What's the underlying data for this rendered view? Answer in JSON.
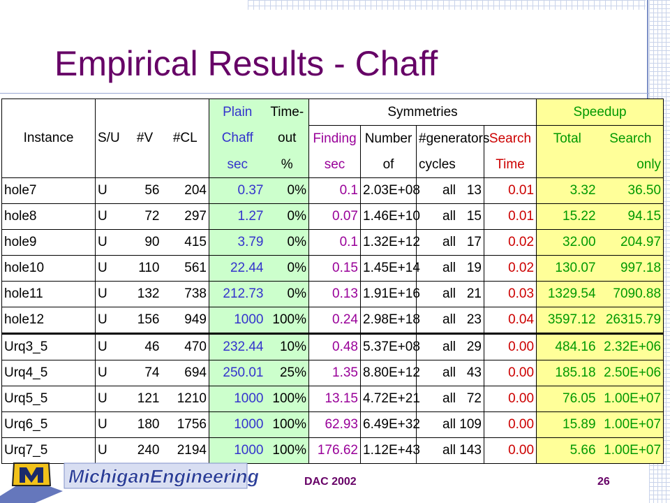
{
  "slide": {
    "title": "Empirical Results - Chaff"
  },
  "table": {
    "headers": {
      "instance": "Instance",
      "su": "S/U",
      "v": "#V",
      "cl": "#CL",
      "plain_chaff": [
        "Plain",
        "Chaff",
        "sec"
      ],
      "timeout": [
        "Time-",
        "out",
        "%"
      ],
      "symmetries": "Symmetries",
      "finding": [
        "Finding",
        "sec"
      ],
      "number": [
        "Number",
        "of"
      ],
      "generators": [
        "#generators",
        "cycles"
      ],
      "search": [
        "Search",
        "Time"
      ],
      "speedup": "Speedup",
      "total": "Total",
      "search_only": [
        "Search",
        "only"
      ]
    },
    "rows": [
      {
        "instance": "hole7",
        "su": "U",
        "v": "56",
        "cl": "204",
        "chaff": "0.37",
        "timeout": "0%",
        "finding": "0.1",
        "number": "2.03E+08",
        "all": "all",
        "cycles": "13",
        "search": "0.01",
        "total": "3.32",
        "search_only": "36.50"
      },
      {
        "instance": "hole8",
        "su": "U",
        "v": "72",
        "cl": "297",
        "chaff": "1.27",
        "timeout": "0%",
        "finding": "0.07",
        "number": "1.46E+10",
        "all": "all",
        "cycles": "15",
        "search": "0.01",
        "total": "15.22",
        "search_only": "94.15"
      },
      {
        "instance": "hole9",
        "su": "U",
        "v": "90",
        "cl": "415",
        "chaff": "3.79",
        "timeout": "0%",
        "finding": "0.1",
        "number": "1.32E+12",
        "all": "all",
        "cycles": "17",
        "search": "0.02",
        "total": "32.00",
        "search_only": "204.97"
      },
      {
        "instance": "hole10",
        "su": "U",
        "v": "110",
        "cl": "561",
        "chaff": "22.44",
        "timeout": "0%",
        "finding": "0.15",
        "number": "1.45E+14",
        "all": "all",
        "cycles": "19",
        "search": "0.02",
        "total": "130.07",
        "search_only": "997.18"
      },
      {
        "instance": "hole11",
        "su": "U",
        "v": "132",
        "cl": "738",
        "chaff": "212.73",
        "timeout": "0%",
        "finding": "0.13",
        "number": "1.91E+16",
        "all": "all",
        "cycles": "21",
        "search": "0.03",
        "total": "1329.54",
        "search_only": "7090.88"
      },
      {
        "instance": "hole12",
        "su": "U",
        "v": "156",
        "cl": "949",
        "chaff": "1000",
        "timeout": "100%",
        "finding": "0.24",
        "number": "2.98E+18",
        "all": "all",
        "cycles": "23",
        "search": "0.04",
        "total": "3597.12",
        "search_only": "26315.79"
      },
      {
        "instance": "Urq3_5",
        "su": "U",
        "v": "46",
        "cl": "470",
        "chaff": "232.44",
        "timeout": "10%",
        "finding": "0.48",
        "number": "5.37E+08",
        "all": "all",
        "cycles": "29",
        "search": "0.00",
        "total": "484.16",
        "search_only": "2.32E+06"
      },
      {
        "instance": "Urq4_5",
        "su": "U",
        "v": "74",
        "cl": "694",
        "chaff": "250.01",
        "timeout": "25%",
        "finding": "1.35",
        "number": "8.80E+12",
        "all": "all",
        "cycles": "43",
        "search": "0.00",
        "total": "185.18",
        "search_only": "2.50E+06"
      },
      {
        "instance": "Urq5_5",
        "su": "U",
        "v": "121",
        "cl": "1210",
        "chaff": "1000",
        "timeout": "100%",
        "finding": "13.15",
        "number": "4.72E+21",
        "all": "all",
        "cycles": "72",
        "search": "0.00",
        "total": "76.05",
        "search_only": "1.00E+07"
      },
      {
        "instance": "Urq6_5",
        "su": "U",
        "v": "180",
        "cl": "1756",
        "chaff": "1000",
        "timeout": "100%",
        "finding": "62.93",
        "number": "6.49E+32",
        "all": "all",
        "cycles": "109",
        "search": "0.00",
        "total": "15.89",
        "search_only": "1.00E+07"
      },
      {
        "instance": "Urq7_5",
        "su": "U",
        "v": "240",
        "cl": "2194",
        "chaff": "1000",
        "timeout": "100%",
        "finding": "176.62",
        "number": "1.12E+43",
        "all": "all",
        "cycles": "143",
        "search": "0.00",
        "total": "5.66",
        "search_only": "1.00E+07"
      }
    ]
  },
  "footer": {
    "logo_text": "MichiganEngineering",
    "center": "DAC 2002",
    "page": "26"
  },
  "colors": {
    "title": "#660066",
    "green_fill": "#ccffcc",
    "yellow_fill": "#ffff99",
    "blue_text": "#3333cc",
    "purple_text": "#990099",
    "red_text": "#cc0000",
    "green_text": "#009900"
  }
}
